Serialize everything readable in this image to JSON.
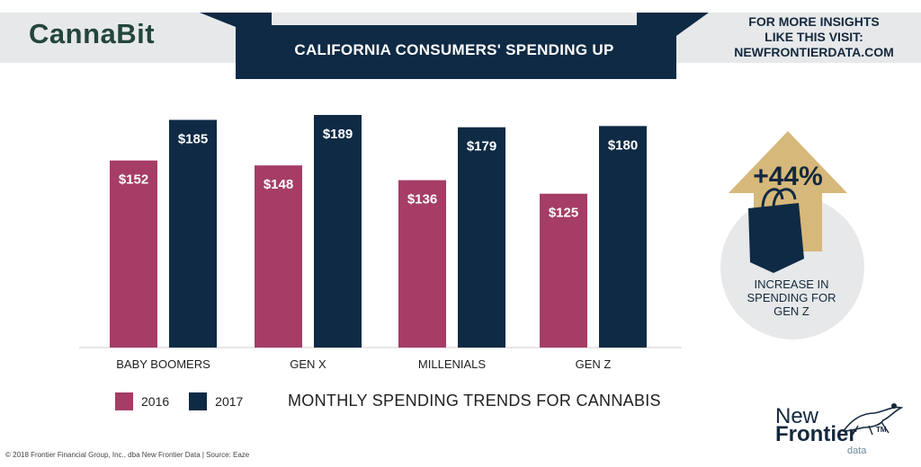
{
  "brand": "CannaBit",
  "banner": {
    "title": "CALIFORNIA CONSUMERS' SPENDING UP"
  },
  "promo": {
    "line1": "FOR MORE INSIGHTS",
    "line2": "LIKE THIS VISIT:",
    "line3": "NEWFRONTIERDATA.COM"
  },
  "chart_data": {
    "type": "bar",
    "categories": [
      "BABY BOOMERS",
      "GEN X",
      "MILLENIALS",
      "GEN Z"
    ],
    "series": [
      {
        "name": "2016",
        "values": [
          152,
          148,
          136,
          125
        ],
        "labels": [
          "$152",
          "$148",
          "$136",
          "$125"
        ],
        "color": "#a53d66"
      },
      {
        "name": "2017",
        "values": [
          185,
          189,
          179,
          180
        ],
        "labels": [
          "$185",
          "$189",
          "$179",
          "$180"
        ],
        "color": "#0f2a44"
      }
    ],
    "title": "MONTHLY SPENDING TRENDS FOR CANNABIS",
    "ylim": [
      0,
      189
    ]
  },
  "legend": {
    "items": [
      "2016",
      "2017"
    ]
  },
  "callout": {
    "value": "+44%",
    "line1": "INCREASE IN",
    "line2": "SPENDING FOR",
    "line3": "GEN Z",
    "arrow_color": "#d6b87a",
    "circle_color": "#e6e8ea",
    "bag_color": "#0f2a44"
  },
  "footer": "© 2018 Frontier Financial Group, Inc., dba New Frontier Data  |  Source: Eaze",
  "logo": {
    "new": "New",
    "frontier": "Frontier",
    "tm": "TM",
    "data": "data"
  }
}
